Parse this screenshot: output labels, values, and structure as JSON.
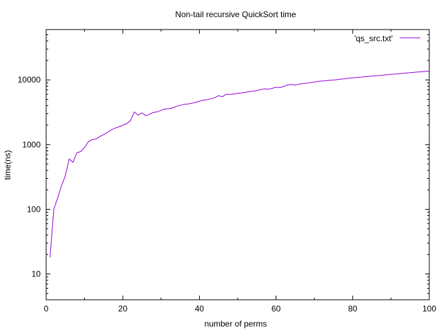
{
  "chart_data": {
    "type": "line",
    "title": "Non-tail recursive QuickSort time",
    "xlabel": "number of perms",
    "ylabel": "time(ns)",
    "xlim": [
      0,
      100
    ],
    "ylim": [
      4,
      60000
    ],
    "y_scale": "log",
    "grid": false,
    "legend_position": "top-right",
    "x_ticks": [
      0,
      20,
      40,
      60,
      80,
      100
    ],
    "x_tick_labels": [
      "0",
      "20",
      "40",
      "60",
      "80",
      "100"
    ],
    "y_ticks": [
      10,
      100,
      1000,
      10000
    ],
    "y_tick_labels": [
      "10",
      "100",
      "1000",
      "10000"
    ],
    "series": [
      {
        "name": "'qs_src.txt'",
        "color": "#9400d3",
        "x": [
          1,
          2,
          3,
          4,
          5,
          6,
          7,
          8,
          9,
          10,
          11,
          12,
          13,
          14,
          15,
          16,
          17,
          18,
          19,
          20,
          21,
          22,
          23,
          24,
          25,
          26,
          27,
          28,
          29,
          30,
          31,
          32,
          33,
          34,
          35,
          36,
          37,
          38,
          39,
          40,
          41,
          42,
          43,
          44,
          45,
          46,
          47,
          48,
          49,
          50,
          51,
          52,
          53,
          54,
          55,
          56,
          57,
          58,
          59,
          60,
          61,
          62,
          63,
          64,
          65,
          66,
          67,
          68,
          69,
          70,
          71,
          72,
          73,
          74,
          75,
          76,
          77,
          78,
          79,
          80,
          81,
          82,
          83,
          84,
          85,
          86,
          87,
          88,
          89,
          90,
          91,
          92,
          93,
          94,
          95,
          96,
          97,
          98,
          99,
          100
        ],
        "y": [
          18,
          100,
          150,
          230,
          330,
          600,
          530,
          750,
          780,
          900,
          1100,
          1200,
          1220,
          1330,
          1430,
          1540,
          1680,
          1800,
          1880,
          2000,
          2100,
          2350,
          3200,
          2850,
          3100,
          2800,
          2950,
          3150,
          3200,
          3400,
          3550,
          3600,
          3700,
          3900,
          4050,
          4200,
          4250,
          4350,
          4500,
          4700,
          4850,
          4950,
          5100,
          5300,
          5700,
          5500,
          6000,
          5950,
          6050,
          6200,
          6300,
          6450,
          6600,
          6700,
          6850,
          7100,
          7250,
          7200,
          7400,
          7700,
          7600,
          7900,
          8400,
          8500,
          8300,
          8600,
          8800,
          8900,
          9100,
          9300,
          9500,
          9600,
          9700,
          9850,
          9950,
          10100,
          10300,
          10400,
          10600,
          10800,
          10900,
          11000,
          11200,
          11300,
          11450,
          11600,
          11700,
          11850,
          12000,
          12200,
          12300,
          12450,
          12600,
          12800,
          12900,
          13100,
          13250,
          13400,
          13550,
          13700
        ]
      }
    ]
  }
}
